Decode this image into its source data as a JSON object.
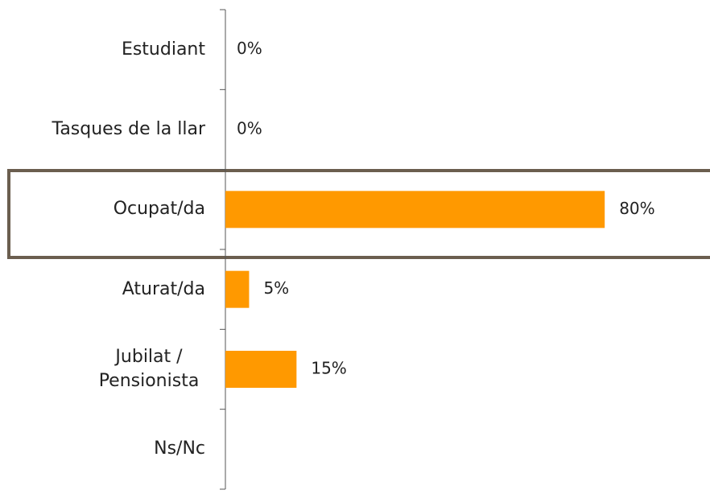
{
  "chart_data": {
    "type": "bar",
    "orientation": "horizontal",
    "categories": [
      "Estudiant",
      "Tasques de la llar",
      "Ocupat/da",
      "Aturat/da",
      "Jubilat / Pensionista",
      "Ns/Nc"
    ],
    "values": [
      0,
      0,
      80,
      5,
      15,
      null
    ],
    "value_labels": [
      "0%",
      "0%",
      "80%",
      "5%",
      "15%",
      null
    ],
    "color": "#ff9900"
  }
}
